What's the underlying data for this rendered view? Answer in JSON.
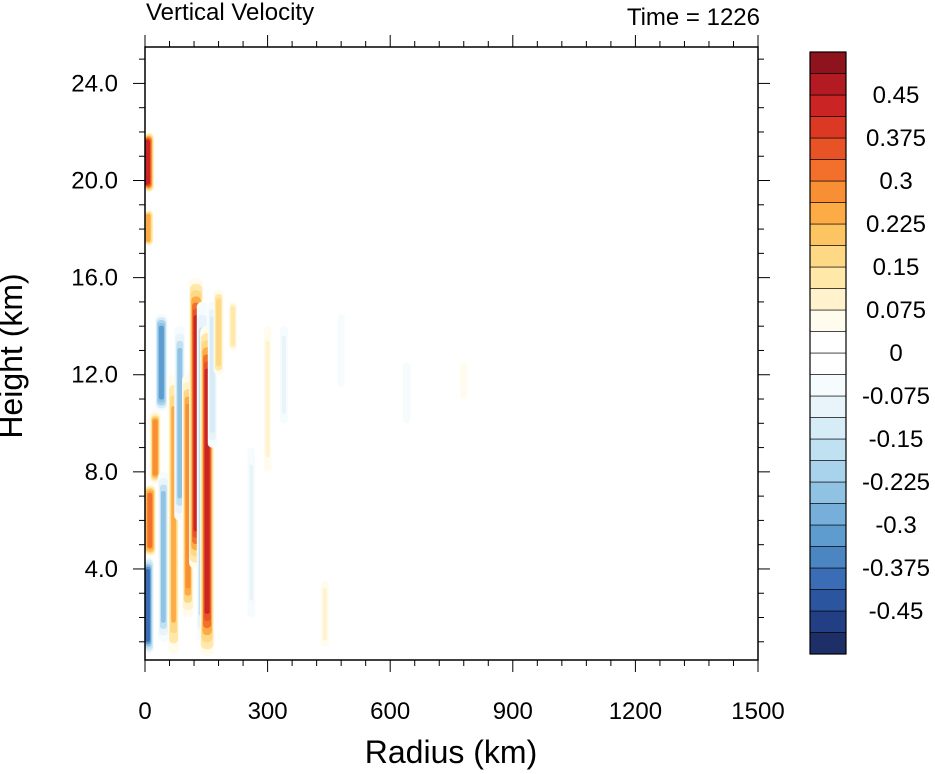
{
  "chart_data": {
    "type": "heatmap",
    "title": "Vertical Velocity",
    "subtitle": "Time = 1226",
    "xlabel": "Radius (km)",
    "ylabel": "Height (km)",
    "xlim": [
      0,
      1500
    ],
    "ylim": [
      0.25,
      25.5
    ],
    "x_ticks": [
      0,
      300,
      600,
      900,
      1200,
      1500
    ],
    "x_tick_labels": [
      "0",
      "300",
      "600",
      "900",
      "1200",
      "1500"
    ],
    "y_ticks": [
      4,
      8,
      12,
      16,
      20,
      24
    ],
    "y_tick_labels": [
      "4.0",
      "8.0",
      "12.0",
      "16.0",
      "20.0",
      "24.0"
    ],
    "colorbar": {
      "range": [
        -0.525,
        0.525
      ],
      "levels": 28,
      "labels": [
        "0.45",
        "0.375",
        "0.3",
        "0.225",
        "0.15",
        "0.075",
        "0",
        "-0.075",
        "-0.15",
        "-0.225",
        "-0.3",
        "-0.375",
        "-0.45"
      ],
      "label_values": [
        0.45,
        0.375,
        0.3,
        0.225,
        0.15,
        0.075,
        0,
        -0.075,
        -0.15,
        -0.225,
        -0.3,
        -0.375,
        -0.45
      ],
      "colors": [
        "#1d2f66",
        "#233f83",
        "#2c559f",
        "#3a6db5",
        "#4b85c2",
        "#5e9bcf",
        "#76b0da",
        "#90c2e4",
        "#a9d3ec",
        "#c0e1f2",
        "#d6ecf7",
        "#e8f4fa",
        "#f6fbfd",
        "#ffffff",
        "#ffffff",
        "#fffbed",
        "#fff2cc",
        "#ffe8a8",
        "#fdd985",
        "#fdc561",
        "#fcab45",
        "#f98f34",
        "#f2702b",
        "#e85326",
        "#dc3925",
        "#cb2425",
        "#b31a22",
        "#8f131c"
      ]
    },
    "features": [
      {
        "r": 6,
        "z0": 0.5,
        "z1": 4.5,
        "w": -0.45
      },
      {
        "r": 12,
        "z0": 4.5,
        "z1": 7.5,
        "w": 0.4
      },
      {
        "r": 25,
        "z0": 7.5,
        "z1": 10.5,
        "w": 0.35
      },
      {
        "r": 40,
        "z0": 10.5,
        "z1": 14.5,
        "w": -0.4
      },
      {
        "r": 8,
        "z0": 17.3,
        "z1": 18.8,
        "w": 0.3
      },
      {
        "r": 6,
        "z0": 19.5,
        "z1": 22.0,
        "w": 0.5
      },
      {
        "r": 45,
        "z0": 1.0,
        "z1": 8.0,
        "w": -0.3
      },
      {
        "r": 70,
        "z0": 0.5,
        "z1": 12.0,
        "w": 0.3
      },
      {
        "r": 85,
        "z0": 6.0,
        "z1": 14.0,
        "w": -0.3
      },
      {
        "r": 105,
        "z0": 2.0,
        "z1": 12.0,
        "w": 0.35
      },
      {
        "r": 125,
        "z0": 4.0,
        "z1": 16.0,
        "w": 0.5
      },
      {
        "r": 140,
        "z0": 1.0,
        "z1": 15.0,
        "w": -0.3
      },
      {
        "r": 152,
        "z0": 0.4,
        "z1": 14.0,
        "w": 0.5
      },
      {
        "r": 165,
        "z0": 9.0,
        "z1": 15.0,
        "w": -0.2
      },
      {
        "r": 180,
        "z0": 12.0,
        "z1": 15.5,
        "w": 0.25
      },
      {
        "r": 215,
        "z0": 13.0,
        "z1": 15.0,
        "w": 0.15
      },
      {
        "r": 260,
        "z0": 2.0,
        "z1": 9.0,
        "w": -0.1
      },
      {
        "r": 300,
        "z0": 8.0,
        "z1": 14.0,
        "w": 0.1
      },
      {
        "r": 340,
        "z0": 10.0,
        "z1": 14.0,
        "w": -0.1
      },
      {
        "r": 440,
        "z0": 0.8,
        "z1": 3.5,
        "w": 0.1
      },
      {
        "r": 480,
        "z0": 11.5,
        "z1": 14.5,
        "w": -0.08
      },
      {
        "r": 640,
        "z0": 10.0,
        "z1": 12.5,
        "w": -0.06
      },
      {
        "r": 780,
        "z0": 11.0,
        "z1": 12.5,
        "w": 0.06
      }
    ]
  }
}
